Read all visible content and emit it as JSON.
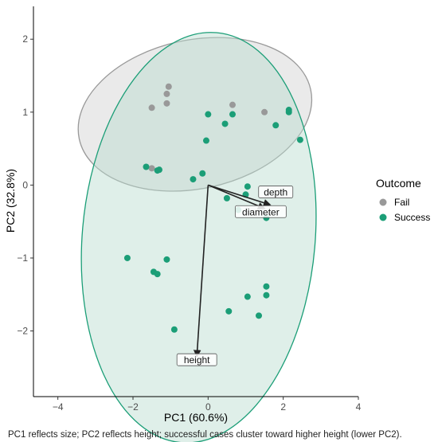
{
  "chart_data": {
    "type": "scatter",
    "xlabel": "PC1 (60.6%)",
    "ylabel": "PC2 (32.8%)",
    "caption": "PC1 reflects size; PC2 reflects height; successful cases cluster toward higher height (lower PC2).",
    "xlim": [
      -4.65,
      4.0
    ],
    "ylim": [
      -2.9,
      2.45
    ],
    "x_ticks": [
      -4,
      -2,
      0,
      2,
      4
    ],
    "y_ticks": [
      -2,
      -1,
      0,
      1,
      2
    ],
    "x_tick_labels": [
      "−4",
      "−2",
      "0",
      "2",
      "4"
    ],
    "y_tick_labels": [
      "−2",
      "−1",
      "0",
      "1",
      "2"
    ],
    "grid": false,
    "legend": {
      "title": "Outcome",
      "position": "right",
      "entries": [
        "Fail",
        "Success"
      ]
    },
    "colors": {
      "Fail": "#999999",
      "Success": "#1b9e77",
      "fail_fill": "#d9d9d9",
      "success_fill": "#b9dccf",
      "arrow": "#222222"
    },
    "series": [
      {
        "name": "Fail",
        "points": [
          [
            -1.05,
            1.35
          ],
          [
            -1.1,
            1.25
          ],
          [
            -1.1,
            1.12
          ],
          [
            -1.5,
            1.06
          ],
          [
            0.65,
            1.1
          ],
          [
            1.5,
            1.0
          ],
          [
            -1.5,
            0.23
          ]
        ]
      },
      {
        "name": "Success",
        "points": [
          [
            0.0,
            0.97
          ],
          [
            0.65,
            0.97
          ],
          [
            0.45,
            0.84
          ],
          [
            1.8,
            0.82
          ],
          [
            2.15,
            1.0
          ],
          [
            2.15,
            1.03
          ],
          [
            2.45,
            0.62
          ],
          [
            -0.05,
            0.61
          ],
          [
            -1.65,
            0.25
          ],
          [
            -1.3,
            0.21
          ],
          [
            -1.35,
            0.2
          ],
          [
            -0.15,
            0.16
          ],
          [
            -0.4,
            0.08
          ],
          [
            1.05,
            -0.02
          ],
          [
            0.5,
            -0.18
          ],
          [
            1.0,
            -0.13
          ],
          [
            0.8,
            -0.34
          ],
          [
            1.55,
            -0.45
          ],
          [
            -2.15,
            -1.0
          ],
          [
            -1.1,
            -1.02
          ],
          [
            -1.45,
            -1.19
          ],
          [
            -1.35,
            -1.22
          ],
          [
            1.55,
            -1.39
          ],
          [
            1.05,
            -1.53
          ],
          [
            1.55,
            -1.51
          ],
          [
            0.55,
            -1.73
          ],
          [
            1.35,
            -1.79
          ],
          [
            -0.9,
            -1.98
          ]
        ]
      }
    ],
    "ellipses": [
      {
        "group": "Fail",
        "cx": -0.35,
        "cy": 0.97,
        "rx": 3.15,
        "ry": 1.02,
        "rotate_deg": -12
      },
      {
        "group": "Success",
        "cx": -0.25,
        "cy": -0.72,
        "rx": 3.1,
        "ry": 2.82,
        "rotate_deg": 5
      }
    ],
    "loadings": [
      {
        "name": "depth",
        "x": 1.65,
        "y": -0.27,
        "label_x": 1.8,
        "label_y": -0.1
      },
      {
        "name": "diameter",
        "x": 1.5,
        "y": -0.32,
        "label_x": 1.4,
        "label_y": -0.37
      },
      {
        "name": "height",
        "x": -0.3,
        "y": -2.35,
        "label_x": -0.3,
        "label_y": -2.4
      }
    ]
  }
}
